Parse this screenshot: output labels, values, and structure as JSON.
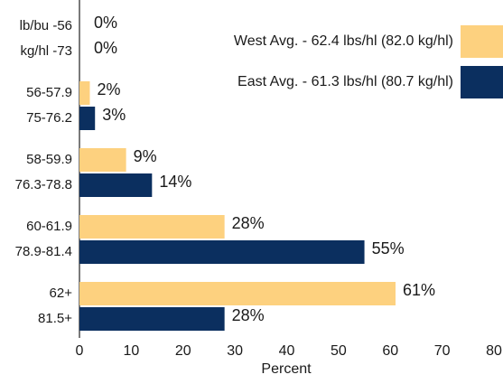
{
  "chart_data": {
    "type": "hbar",
    "categories": [
      [
        "lb/bu -56",
        "kg/hl -73"
      ],
      [
        "56-57.9",
        "75-76.2"
      ],
      [
        "58-59.9",
        "76.3-78.8"
      ],
      [
        "60-61.9",
        "78.9-81.4"
      ],
      [
        "62+",
        "81.5+"
      ]
    ],
    "series": [
      {
        "name": "West Avg. - 62.4 lbs/hl (82.0 kg/hl)",
        "color": "#fdd17f",
        "values": [
          0,
          2,
          9,
          28,
          61
        ],
        "value_labels": [
          "0%",
          "2%",
          "9%",
          "28%",
          "61%"
        ]
      },
      {
        "name": "East Avg. - 61.3 lbs/hl (80.7 kg/hl)",
        "color": "#0b2f5f",
        "values": [
          0,
          3,
          14,
          55,
          28
        ],
        "value_labels": [
          "0%",
          "3%",
          "14%",
          "55%",
          "28%"
        ]
      }
    ],
    "xlabel": "Percent",
    "xlim": [
      0,
      80
    ],
    "xticks": [
      0,
      10,
      20,
      30,
      40,
      50,
      60,
      70,
      80
    ],
    "grid": false
  }
}
